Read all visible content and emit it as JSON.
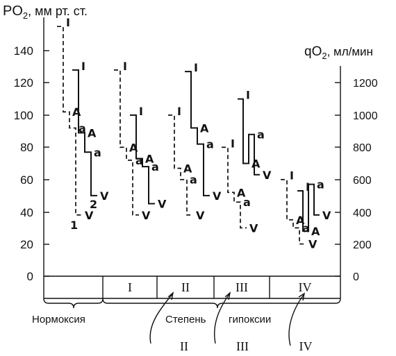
{
  "axes": {
    "left_label_main": "PO",
    "left_label_sub": "2",
    "left_label_unit": ", мм рт. ст.",
    "right_label_main": "qO",
    "right_label_sub": "2",
    "right_label_unit": ", мл/мин",
    "left_ticks": [
      "0",
      "20",
      "40",
      "60",
      "80",
      "100",
      "120",
      "140"
    ],
    "right_ticks": [
      "0",
      "200",
      "400",
      "600",
      "800",
      "1000",
      "1200"
    ]
  },
  "point_labels": {
    "inspired": "I",
    "alveolar": "A",
    "arterial": "a",
    "venous": "V"
  },
  "chart_data": {
    "type": "step",
    "left_axis": {
      "range": [
        0,
        160
      ]
    },
    "right_axis": {
      "range": [
        0,
        1300
      ]
    },
    "groups": [
      {
        "label": "",
        "series": [
          {
            "name": "1",
            "style": "dashed",
            "I": 155,
            "A": 102,
            "a": 92,
            "V": 38
          },
          {
            "name": "2",
            "style": "solid",
            "I": 128,
            "A": 89,
            "a": 77,
            "V": 50
          }
        ]
      },
      {
        "label": "I",
        "series": [
          {
            "style": "dashed",
            "I": 128,
            "A": 80,
            "a": 72,
            "V": 38
          },
          {
            "style": "solid",
            "I": 100,
            "A": 73,
            "a": 68,
            "V": 45
          }
        ]
      },
      {
        "label": "II",
        "series": [
          {
            "style": "dashed",
            "I": 100,
            "A": 67,
            "a": 60,
            "V": 38
          },
          {
            "style": "solid",
            "I": 127,
            "A": 92,
            "a": 82,
            "V": 50
          }
        ]
      },
      {
        "label": "III",
        "series": [
          {
            "style": "dashed",
            "I": 80,
            "A": 52,
            "a": 46,
            "V": 30
          },
          {
            "style": "solid",
            "I": 110,
            "A": 70,
            "a": 88,
            "V": 63
          }
        ]
      },
      {
        "label": "IV",
        "series": [
          {
            "style": "dashed",
            "I": 60,
            "A": 35,
            "a": 30,
            "V": 20
          },
          {
            "style": "solid",
            "I": 53,
            "A": 28,
            "a": 57,
            "V": 38
          }
        ]
      }
    ]
  },
  "stages": [
    "I",
    "II",
    "III",
    "IV"
  ],
  "captions": {
    "normoxia": "Нормоксия",
    "degree": "Степень",
    "hypoxia": "гипоксии"
  },
  "arrow_labels": [
    "II",
    "III",
    "IV"
  ]
}
